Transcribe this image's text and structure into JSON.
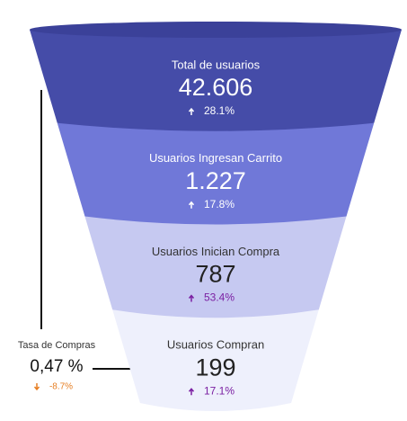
{
  "chart_data": {
    "type": "funnel",
    "categories": [
      "Total de usuarios",
      "Usuarios Ingresan Carrito",
      "Usuarios Inician Compra",
      "Usuarios Compran"
    ],
    "values": [
      42606,
      1227,
      787,
      199
    ],
    "value_labels": [
      "42.606",
      "1.227",
      "787",
      "199"
    ],
    "changes": [
      {
        "value": 28.1,
        "label": "28.1%"
      },
      {
        "value": 17.8,
        "label": "17.8%"
      },
      {
        "value": 53.4,
        "label": "53.4%"
      },
      {
        "value": 17.1,
        "label": "17.1%"
      }
    ],
    "colors": [
      "#454ca8",
      "#7078d8",
      "#c6c9f1",
      "#eef0fc"
    ],
    "annotation": {
      "title": "Tasa de Compras",
      "value": 0.47,
      "value_label": "0,47 %",
      "change": {
        "value": -8.7,
        "label": "-8.7%"
      }
    }
  }
}
